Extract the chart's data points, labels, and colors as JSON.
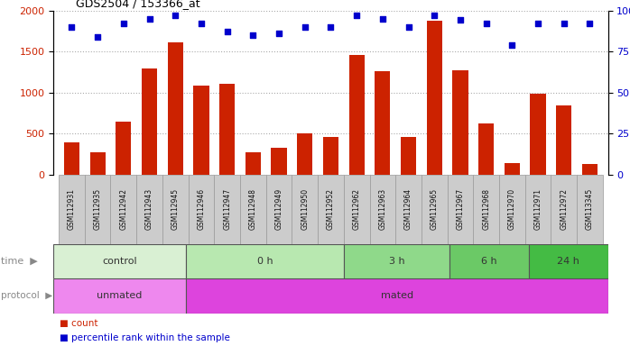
{
  "title": "GDS2504 / 153366_at",
  "samples": [
    "GSM112931",
    "GSM112935",
    "GSM112942",
    "GSM112943",
    "GSM112945",
    "GSM112946",
    "GSM112947",
    "GSM112948",
    "GSM112949",
    "GSM112950",
    "GSM112952",
    "GSM112962",
    "GSM112963",
    "GSM112964",
    "GSM112965",
    "GSM112967",
    "GSM112968",
    "GSM112970",
    "GSM112971",
    "GSM112972",
    "GSM113345"
  ],
  "counts": [
    390,
    270,
    650,
    1290,
    1610,
    1090,
    1110,
    270,
    330,
    500,
    460,
    1460,
    1260,
    460,
    1870,
    1270,
    620,
    145,
    990,
    840,
    130
  ],
  "percentiles": [
    90,
    84,
    92,
    95,
    97,
    92,
    87,
    85,
    86,
    90,
    90,
    97,
    95,
    90,
    97,
    94,
    92,
    79,
    92,
    92,
    92
  ],
  "bar_color": "#cc2200",
  "dot_color": "#0000cc",
  "ylim_left": [
    0,
    2000
  ],
  "ylim_right": [
    0,
    100
  ],
  "yticks_left": [
    0,
    500,
    1000,
    1500,
    2000
  ],
  "yticks_right": [
    0,
    25,
    50,
    75,
    100
  ],
  "groups": {
    "time": [
      {
        "label": "control",
        "start": 0,
        "end": 5,
        "color": "#d9f0d3"
      },
      {
        "label": "0 h",
        "start": 5,
        "end": 11,
        "color": "#b8e8b0"
      },
      {
        "label": "3 h",
        "start": 11,
        "end": 15,
        "color": "#8fd98a"
      },
      {
        "label": "6 h",
        "start": 15,
        "end": 18,
        "color": "#6bc966"
      },
      {
        "label": "24 h",
        "start": 18,
        "end": 21,
        "color": "#44bb44"
      }
    ],
    "protocol": [
      {
        "label": "unmated",
        "start": 0,
        "end": 5,
        "color": "#ee88ee"
      },
      {
        "label": "mated",
        "start": 5,
        "end": 21,
        "color": "#dd44dd"
      }
    ]
  },
  "legend": [
    {
      "label": "count",
      "color": "#cc2200"
    },
    {
      "label": "percentile rank within the sample",
      "color": "#0000cc"
    }
  ],
  "background_color": "#ffffff",
  "grid_color": "#888888",
  "label_row_color": "#cccccc",
  "label_text_color": "#333333",
  "row_label_color": "#888888"
}
